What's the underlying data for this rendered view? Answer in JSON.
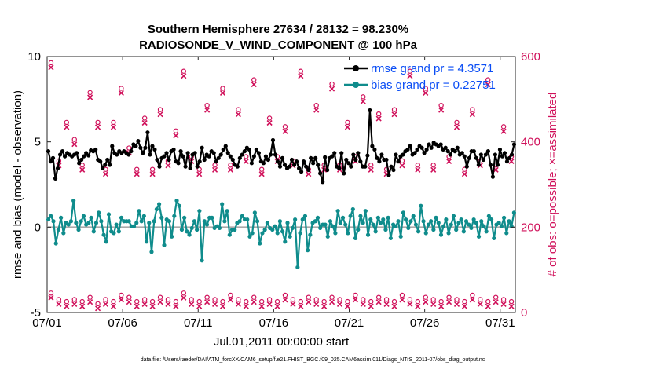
{
  "chart_data": {
    "type": "line",
    "title": "Southern Hemisphere 27634 / 28132 = 98.230%",
    "subtitle": "RADIOSONDE_V_WIND_COMPONENT @ 100 hPa",
    "xlabel": "Jul.01,2011 00:00:00 start",
    "ylabel": "rmse and bias (model - observation)",
    "y2label": "# of obs: o=possible; ×=assimilated",
    "footer": "data file: /Users/raeder/DAI/ATM_forcXX/CAM6_setup/f.e21.FHIST_BGC.f09_025.CAM6assim.011/Diags_NTrS_2011-07/obs_diag_output.nc",
    "xlim": [
      0,
      31
    ],
    "ylim": [
      -5,
      10
    ],
    "y2lim": [
      0,
      600
    ],
    "x_ticks": [
      0,
      5,
      10,
      15,
      20,
      25,
      30
    ],
    "x_tick_labels": [
      "07/01",
      "07/06",
      "07/11",
      "07/16",
      "07/21",
      "07/26",
      "07/31"
    ],
    "y_ticks": [
      -5,
      0,
      5,
      10
    ],
    "y_tick_labels": [
      "-5",
      "0",
      "5",
      "10"
    ],
    "y2_ticks": [
      0,
      200,
      400,
      600
    ],
    "y2_tick_labels": [
      "0",
      "200",
      "400",
      "600"
    ],
    "legend_location": "top-right",
    "colors": {
      "rmse": "#000000",
      "bias": "#0f8c8c",
      "obs": "#d0105a",
      "zero_line": "#aaaaaa",
      "right_axis": "#d0105a",
      "legend_text": "#0a4df5"
    },
    "series": [
      {
        "name": "rmse grand pr = 4.3571",
        "key": "rmse",
        "values": [
          4.45,
          3.85,
          4.05,
          2.85,
          3.45,
          4.25,
          4.45,
          4.15,
          4.35,
          4.25,
          4.15,
          4.25,
          4.35,
          3.75,
          3.95,
          4.15,
          4.35,
          4.2,
          4.5,
          4.45,
          4.55,
          3.95,
          3.85,
          3.45,
          3.65,
          3.95,
          3.65,
          4.75,
          4.35,
          4.25,
          4.45,
          4.35,
          4.45,
          4.35,
          4.25,
          4.45,
          4.85,
          4.75,
          5.05,
          4.65,
          4.35,
          4.65,
          5.55,
          4.25,
          4.75,
          4.55,
          3.95,
          3.55,
          4.05,
          4.15,
          4.35,
          3.95,
          4.45,
          4.55,
          3.85,
          3.75,
          4.45,
          4.15,
          3.55,
          4.35,
          3.45,
          4.25,
          4.35,
          3.55,
          3.85,
          4.65,
          3.95,
          4.25,
          4.15,
          4.45,
          4.35,
          3.85,
          4.05,
          4.25,
          4.55,
          4.75,
          4.35,
          4.15,
          3.95,
          3.65,
          3.55,
          4.05,
          4.25,
          4.45,
          4.65,
          4.55,
          3.75,
          4.15,
          4.55,
          4.35,
          3.85,
          3.75,
          4.15,
          3.95,
          4.25,
          5.1,
          4.25,
          3.85,
          3.55,
          4.05,
          3.65,
          3.45,
          3.55,
          3.95,
          3.65,
          3.85,
          3.45,
          3.25,
          3.85,
          3.55,
          3.35,
          4.05,
          3.75,
          4.05,
          3.65,
          3.15,
          2.65,
          4.1,
          3.35,
          4.05,
          4.15,
          4.35,
          3.55,
          3.45,
          4.35,
          3.15,
          3.95,
          3.75,
          3.55,
          4.25,
          3.95,
          4.35,
          3.85,
          3.55,
          3.55,
          4.2,
          6.85,
          4.75,
          4.55,
          4.05,
          3.85,
          4.25,
          3.95,
          3.95,
          3.05,
          3.55,
          3.35,
          4.25,
          3.85,
          4.15,
          4.25,
          4.45,
          4.55,
          4.75,
          4.25,
          4.35,
          4.55,
          4.75,
          4.65,
          4.35,
          4.55,
          4.85,
          4.65,
          4.95,
          4.85,
          4.75,
          4.85,
          4.55,
          4.65,
          4.45,
          4.25,
          4.55,
          4.45,
          4.65,
          4.25,
          4.35,
          4.15,
          3.55,
          4.05,
          4.45,
          4.45,
          4.05,
          3.65,
          4.25,
          3.95,
          4.25,
          4.45,
          3.65,
          2.95,
          4.25,
          3.65,
          4.55,
          4.15,
          4.35,
          3.85,
          4.05,
          4.25,
          4.85
        ]
      },
      {
        "name": "bias grand pr = 0.22751",
        "key": "bias",
        "values": [
          0.45,
          0.65,
          0.35,
          -0.95,
          -0.15,
          0.55,
          -0.35,
          0.25,
          0.15,
          0.35,
          1.55,
          0.25,
          -0.15,
          0.35,
          0.65,
          0.15,
          0.25,
          0.55,
          -0.25,
          0.25,
          0.85,
          0.35,
          -0.45,
          -0.85,
          0.75,
          -0.25,
          -0.35,
          0.15,
          -0.25,
          0.55,
          0.35,
          0.35,
          0.35,
          0.05,
          0.05,
          0.25,
          0.95,
          0.35,
          0.65,
          -0.85,
          0.25,
          -1.45,
          0.35,
          1.05,
          1.35,
          0.55,
          -1.05,
          0.45,
          0.35,
          -0.55,
          0.65,
          1.55,
          1.25,
          -0.15,
          0.55,
          -0.25,
          -0.45,
          -0.05,
          0.35,
          -0.15,
          0.95,
          -1.95,
          0.35,
          0.15,
          0.55,
          0.55,
          -0.05,
          0.05,
          -0.05,
          1.35,
          0.35,
          0.95,
          -0.45,
          -0.15,
          -0.15,
          0.25,
          0.35,
          0.65,
          0.45,
          0.45,
          -0.55,
          -0.35,
          0.85,
          0.35,
          -0.95,
          -0.35,
          -0.15,
          0.25,
          -0.05,
          -0.15,
          0.05,
          -0.35,
          0.35,
          -0.25,
          -0.85,
          0.25,
          -0.55,
          -0.05,
          0.45,
          -2.35,
          -0.35,
          0.45,
          0.65,
          -1.35,
          -0.45,
          0.25,
          0.35,
          0.55,
          -0.05,
          0.15,
          0.15,
          -0.55,
          0.35,
          0.05,
          -0.35,
          0.95,
          0.25,
          0.55,
          0.15,
          -0.35,
          0.65,
          1.05,
          -0.65,
          -0.15,
          0.65,
          0.25,
          0.95,
          -0.45,
          0.45,
          0.15,
          -0.25,
          0.55,
          0.25,
          0.45,
          -0.15,
          0.55,
          -0.65,
          0.15,
          0.05,
          0.35,
          -0.55,
          0.85,
          0.45,
          -0.05,
          0.35,
          0.65,
          0.15,
          -0.25,
          1.25,
          0.35,
          -0.35,
          0.15,
          0.35,
          -0.15,
          0.55,
          0.25,
          -0.45,
          0.05,
          0.45,
          -0.35,
          0.15,
          0.65,
          -0.15,
          0.25,
          0.45,
          -0.25,
          0.35,
          0.15,
          -0.05,
          0.45,
          0.25,
          -0.55,
          0.35,
          0.05,
          -0.25,
          0.65,
          0.45,
          -0.65,
          0.15,
          0.25,
          0.05,
          0.55,
          -0.35,
          0.35,
          0.05,
          0.85
        ]
      }
    ],
    "obs_possible": [
      580,
      350,
      440,
      400,
      340,
      510,
      440,
      330,
      440,
      520,
      380,
      330,
      450,
      330,
      470,
      350,
      420,
      560,
      360,
      330,
      480,
      340,
      520,
      340,
      470,
      360,
      540,
      330,
      450,
      360,
      430,
      350,
      560,
      330,
      480,
      340,
      530,
      340,
      440,
      360,
      500,
      340,
      460,
      330,
      470,
      350,
      560,
      340,
      520,
      340,
      480,
      360,
      440,
      330,
      470,
      350,
      540,
      340,
      430,
      360
    ],
    "obs_assimilated": [
      40,
      25,
      20,
      25,
      20,
      30,
      15,
      25,
      20,
      35,
      30,
      20,
      25,
      20,
      30,
      25,
      20,
      40,
      25,
      20,
      30,
      25,
      20,
      35,
      25,
      20,
      30,
      20,
      25,
      20,
      35,
      25,
      20,
      30,
      25,
      20,
      30,
      25,
      20,
      35,
      25,
      20,
      30,
      25,
      20,
      35,
      25,
      20,
      30,
      25,
      20,
      30,
      25,
      20,
      35,
      25,
      20,
      30,
      25,
      20
    ]
  }
}
